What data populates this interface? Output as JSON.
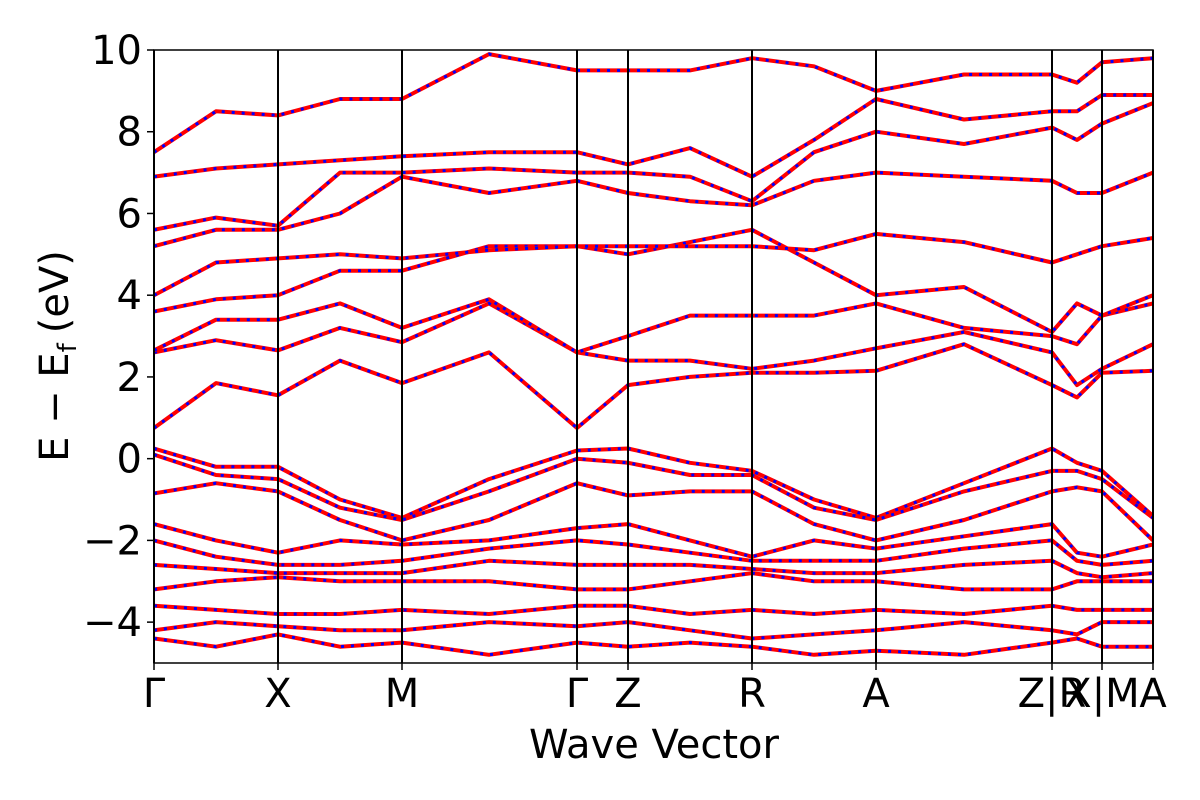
{
  "chart_data": {
    "type": "band_structure",
    "x_label": "Wave Vector",
    "y_label": "E − E",
    "y_label_sub": "f",
    "y_label_unit": "(eV)",
    "xlim": [
      0,
      9.99
    ],
    "ylim": [
      -5,
      10
    ],
    "xticks": [
      {
        "value": 0,
        "label": "Γ"
      },
      {
        "value": 1.24,
        "label": "X"
      },
      {
        "value": 2.48,
        "label": "M"
      },
      {
        "value": 4.23,
        "label": "Γ"
      },
      {
        "value": 4.74,
        "label": "Z"
      },
      {
        "value": 5.98,
        "label": "R"
      },
      {
        "value": 7.22,
        "label": "A"
      },
      {
        "value": 8.98,
        "label": "Z|R"
      },
      {
        "value": 9.48,
        "label": "X|M"
      },
      {
        "value": 9.99,
        "label": "A"
      }
    ],
    "yticks": [
      {
        "value": -4,
        "label": "−4"
      },
      {
        "value": -2,
        "label": "−2"
      },
      0,
      2,
      4,
      6,
      8,
      10
    ],
    "kpoint_lines": true,
    "overlay_color": "#0000ff",
    "x": [
      0,
      0.62,
      1.24,
      1.86,
      2.48,
      3.35,
      4.23,
      4.74,
      5.36,
      5.98,
      6.6,
      7.22,
      8.1,
      8.98,
      9.23,
      9.48,
      9.99
    ],
    "series": [
      {
        "color": "#ff0000",
        "values": [
          0.75,
          1.85,
          1.55,
          2.4,
          1.85,
          2.6,
          0.75,
          1.8,
          2.0,
          2.1,
          2.1,
          2.15,
          2.8,
          1.8,
          1.5,
          2.1,
          2.15
        ]
      },
      {
        "color": "#ff0000",
        "values": [
          2.6,
          2.9,
          2.65,
          3.2,
          2.85,
          3.8,
          2.6,
          2.4,
          2.4,
          2.2,
          2.4,
          2.7,
          3.1,
          2.6,
          1.8,
          2.2,
          2.8
        ]
      },
      {
        "color": "#ff0000",
        "values": [
          2.65,
          3.4,
          3.4,
          3.8,
          3.2,
          3.9,
          2.6,
          3.0,
          3.5,
          3.5,
          3.5,
          3.8,
          3.2,
          3.0,
          2.8,
          3.5,
          3.8
        ]
      },
      {
        "color": "#ff0000",
        "values": [
          3.6,
          3.9,
          4.0,
          4.6,
          4.6,
          5.2,
          5.2,
          5.0,
          5.3,
          5.6,
          4.8,
          4.0,
          4.2,
          3.1,
          3.8,
          3.5,
          4.0
        ]
      },
      {
        "color": "#ff0000",
        "values": [
          4.0,
          4.8,
          4.9,
          5.0,
          4.9,
          5.1,
          5.2,
          5.2,
          5.2,
          5.2,
          5.1,
          5.5,
          5.3,
          4.8,
          5.0,
          5.2,
          5.4
        ]
      },
      {
        "color": "#ff0000",
        "values": [
          5.2,
          5.6,
          5.6,
          6.0,
          6.9,
          6.5,
          6.8,
          6.5,
          6.3,
          6.2,
          6.8,
          7.0,
          6.9,
          6.8,
          6.5,
          6.5,
          7.0
        ]
      },
      {
        "color": "#ff0000",
        "values": [
          5.6,
          5.9,
          5.7,
          7.0,
          7.0,
          7.1,
          7.0,
          7.0,
          6.9,
          6.3,
          7.5,
          8.0,
          7.7,
          8.1,
          7.8,
          8.2,
          8.7
        ]
      },
      {
        "color": "#ff0000",
        "values": [
          6.9,
          7.1,
          7.2,
          7.3,
          7.4,
          7.5,
          7.5,
          7.2,
          7.6,
          6.9,
          7.8,
          8.8,
          8.3,
          8.5,
          8.5,
          8.9,
          8.9
        ]
      },
      {
        "color": "#ff0000",
        "values": [
          7.5,
          8.5,
          8.4,
          8.8,
          8.8,
          9.9,
          9.5,
          9.5,
          9.5,
          9.8,
          9.6,
          9.0,
          9.4,
          9.4,
          9.2,
          9.7,
          9.8
        ]
      },
      {
        "color": "#ff0000",
        "values": [
          0.25,
          -0.2,
          -0.2,
          -1.0,
          -1.45,
          -0.5,
          0.2,
          0.25,
          -0.1,
          -0.3,
          -1.0,
          -1.45,
          -0.6,
          0.25,
          -0.1,
          -0.3,
          -1.4
        ]
      },
      {
        "color": "#ff0000",
        "values": [
          0.1,
          -0.4,
          -0.5,
          -1.2,
          -1.5,
          -0.8,
          0.0,
          -0.1,
          -0.4,
          -0.4,
          -1.2,
          -1.5,
          -0.8,
          -0.3,
          -0.3,
          -0.5,
          -1.45
        ]
      },
      {
        "color": "#ff0000",
        "values": [
          -0.85,
          -0.6,
          -0.8,
          -1.5,
          -2.0,
          -1.5,
          -0.6,
          -0.9,
          -0.8,
          -0.8,
          -1.6,
          -2.0,
          -1.5,
          -0.8,
          -0.7,
          -0.8,
          -2.0
        ]
      },
      {
        "color": "#ff0000",
        "values": [
          -1.6,
          -2.0,
          -2.3,
          -2.0,
          -2.1,
          -2.0,
          -1.7,
          -1.6,
          -2.0,
          -2.4,
          -2.0,
          -2.2,
          -1.9,
          -1.6,
          -2.3,
          -2.4,
          -2.1
        ]
      },
      {
        "color": "#ff0000",
        "values": [
          -2.0,
          -2.4,
          -2.6,
          -2.6,
          -2.5,
          -2.2,
          -2.0,
          -2.1,
          -2.3,
          -2.5,
          -2.5,
          -2.5,
          -2.2,
          -2.0,
          -2.5,
          -2.6,
          -2.5
        ]
      },
      {
        "color": "#ff0000",
        "values": [
          -2.6,
          -2.7,
          -2.8,
          -2.8,
          -2.8,
          -2.5,
          -2.6,
          -2.6,
          -2.6,
          -2.7,
          -2.8,
          -2.8,
          -2.6,
          -2.5,
          -2.8,
          -2.9,
          -2.8
        ]
      },
      {
        "color": "#ff0000",
        "values": [
          -3.2,
          -3.0,
          -2.9,
          -3.0,
          -3.0,
          -3.0,
          -3.2,
          -3.2,
          -3.0,
          -2.8,
          -3.0,
          -3.0,
          -3.2,
          -3.2,
          -3.0,
          -3.0,
          -3.0
        ]
      },
      {
        "color": "#ff0000",
        "values": [
          -3.6,
          -3.7,
          -3.8,
          -3.8,
          -3.7,
          -3.8,
          -3.6,
          -3.6,
          -3.8,
          -3.7,
          -3.8,
          -3.7,
          -3.8,
          -3.6,
          -3.7,
          -3.7,
          -3.7
        ]
      },
      {
        "color": "#ff0000",
        "values": [
          -4.2,
          -4.0,
          -4.1,
          -4.2,
          -4.2,
          -4.0,
          -4.1,
          -4.0,
          -4.2,
          -4.4,
          -4.3,
          -4.2,
          -4.0,
          -4.2,
          -4.3,
          -4.0,
          -4.0
        ]
      },
      {
        "color": "#ff0000",
        "values": [
          -4.4,
          -4.6,
          -4.3,
          -4.6,
          -4.5,
          -4.8,
          -4.5,
          -4.6,
          -4.5,
          -4.6,
          -4.8,
          -4.7,
          -4.8,
          -4.5,
          -4.4,
          -4.6,
          -4.6
        ]
      }
    ]
  }
}
